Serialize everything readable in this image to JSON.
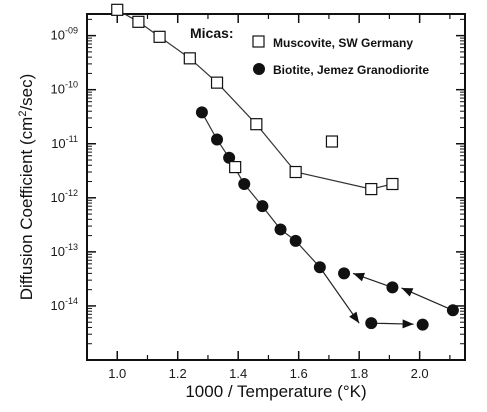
{
  "chart_data": {
    "type": "scatter",
    "xlabel": "1000 / Temperature (°K)",
    "ylabel_parts": {
      "pre": "Diffusion Coefficient (cm",
      "sup": "2",
      "post": "/sec)"
    },
    "xlim": [
      0.9,
      2.15
    ],
    "ylim_log10": [
      -15,
      -8.6
    ],
    "x_ticks": [
      1.0,
      1.2,
      1.4,
      1.6,
      1.8,
      2.0
    ],
    "x_tick_labels": [
      "1.0",
      "1.2",
      "1.4",
      "1.6",
      "1.8",
      "2.0"
    ],
    "y_ticks_log10": [
      -9,
      -10,
      -11,
      -12,
      -13,
      -14
    ],
    "y_tick_labels": [
      {
        "base": "10",
        "exp": "-09"
      },
      {
        "base": "10",
        "exp": "-10"
      },
      {
        "base": "10",
        "exp": "-11"
      },
      {
        "base": "10",
        "exp": "-12"
      },
      {
        "base": "10",
        "exp": "-13"
      },
      {
        "base": "10",
        "exp": "-14"
      }
    ],
    "legend": {
      "title": "Micas:",
      "position": "top-right"
    },
    "series": [
      {
        "name": "Muscovite, SW Germany",
        "marker": "open-square",
        "points": [
          [
            1.0,
            3e-09
          ],
          [
            1.07,
            1.8e-09
          ],
          [
            1.14,
            9.5e-10
          ],
          [
            1.24,
            3.8e-10
          ],
          [
            1.33,
            1.35e-10
          ],
          [
            1.39,
            3.7e-12
          ],
          [
            1.46,
            2.3e-11
          ],
          [
            1.59,
            3e-12
          ],
          [
            1.71,
            1.1e-11
          ],
          [
            1.84,
            1.45e-12
          ],
          [
            1.91,
            1.8e-12
          ]
        ],
        "line": [
          [
            1.0,
            3e-09
          ],
          [
            1.07,
            1.8e-09
          ],
          [
            1.14,
            9.5e-10
          ],
          [
            1.24,
            3.8e-10
          ],
          [
            1.33,
            1.35e-10
          ],
          [
            1.46,
            2.3e-11
          ],
          [
            1.59,
            3e-12
          ],
          [
            1.84,
            1.45e-12
          ],
          [
            1.91,
            1.8e-12
          ]
        ]
      },
      {
        "name": "Biotite, Jemez Granodiorite",
        "marker": "filled-circle",
        "points": [
          [
            1.28,
            3.8e-11
          ],
          [
            1.33,
            1.2e-11
          ],
          [
            1.37,
            5.5e-12
          ],
          [
            1.42,
            1.8e-12
          ],
          [
            1.48,
            7e-13
          ],
          [
            1.54,
            2.6e-13
          ],
          [
            1.59,
            1.6e-13
          ],
          [
            1.67,
            5.2e-14
          ],
          [
            1.75,
            4e-14
          ],
          [
            1.84,
            4.8e-15
          ],
          [
            1.91,
            2.2e-14
          ],
          [
            2.01,
            4.5e-15
          ],
          [
            2.11,
            8.3e-15
          ]
        ],
        "line": [
          [
            1.28,
            3.8e-11
          ],
          [
            1.33,
            1.2e-11
          ],
          [
            1.37,
            5.5e-12
          ],
          [
            1.42,
            1.8e-12
          ],
          [
            1.48,
            7e-13
          ],
          [
            1.54,
            2.6e-13
          ],
          [
            1.59,
            1.6e-13
          ],
          [
            1.67,
            5.2e-14
          ]
        ],
        "arrows": [
          {
            "from": [
              1.67,
              5.2e-14
            ],
            "to": [
              1.8,
              4.8e-15
            ]
          },
          {
            "from": [
              1.84,
              4.8e-15
            ],
            "to": [
              1.98,
              4.6e-15
            ]
          },
          {
            "from": [
              2.11,
              8.3e-15
            ],
            "to": [
              1.94,
              2.15e-14
            ]
          },
          {
            "from": [
              1.91,
              2.2e-14
            ],
            "to": [
              1.78,
              4e-14
            ]
          }
        ]
      }
    ]
  }
}
